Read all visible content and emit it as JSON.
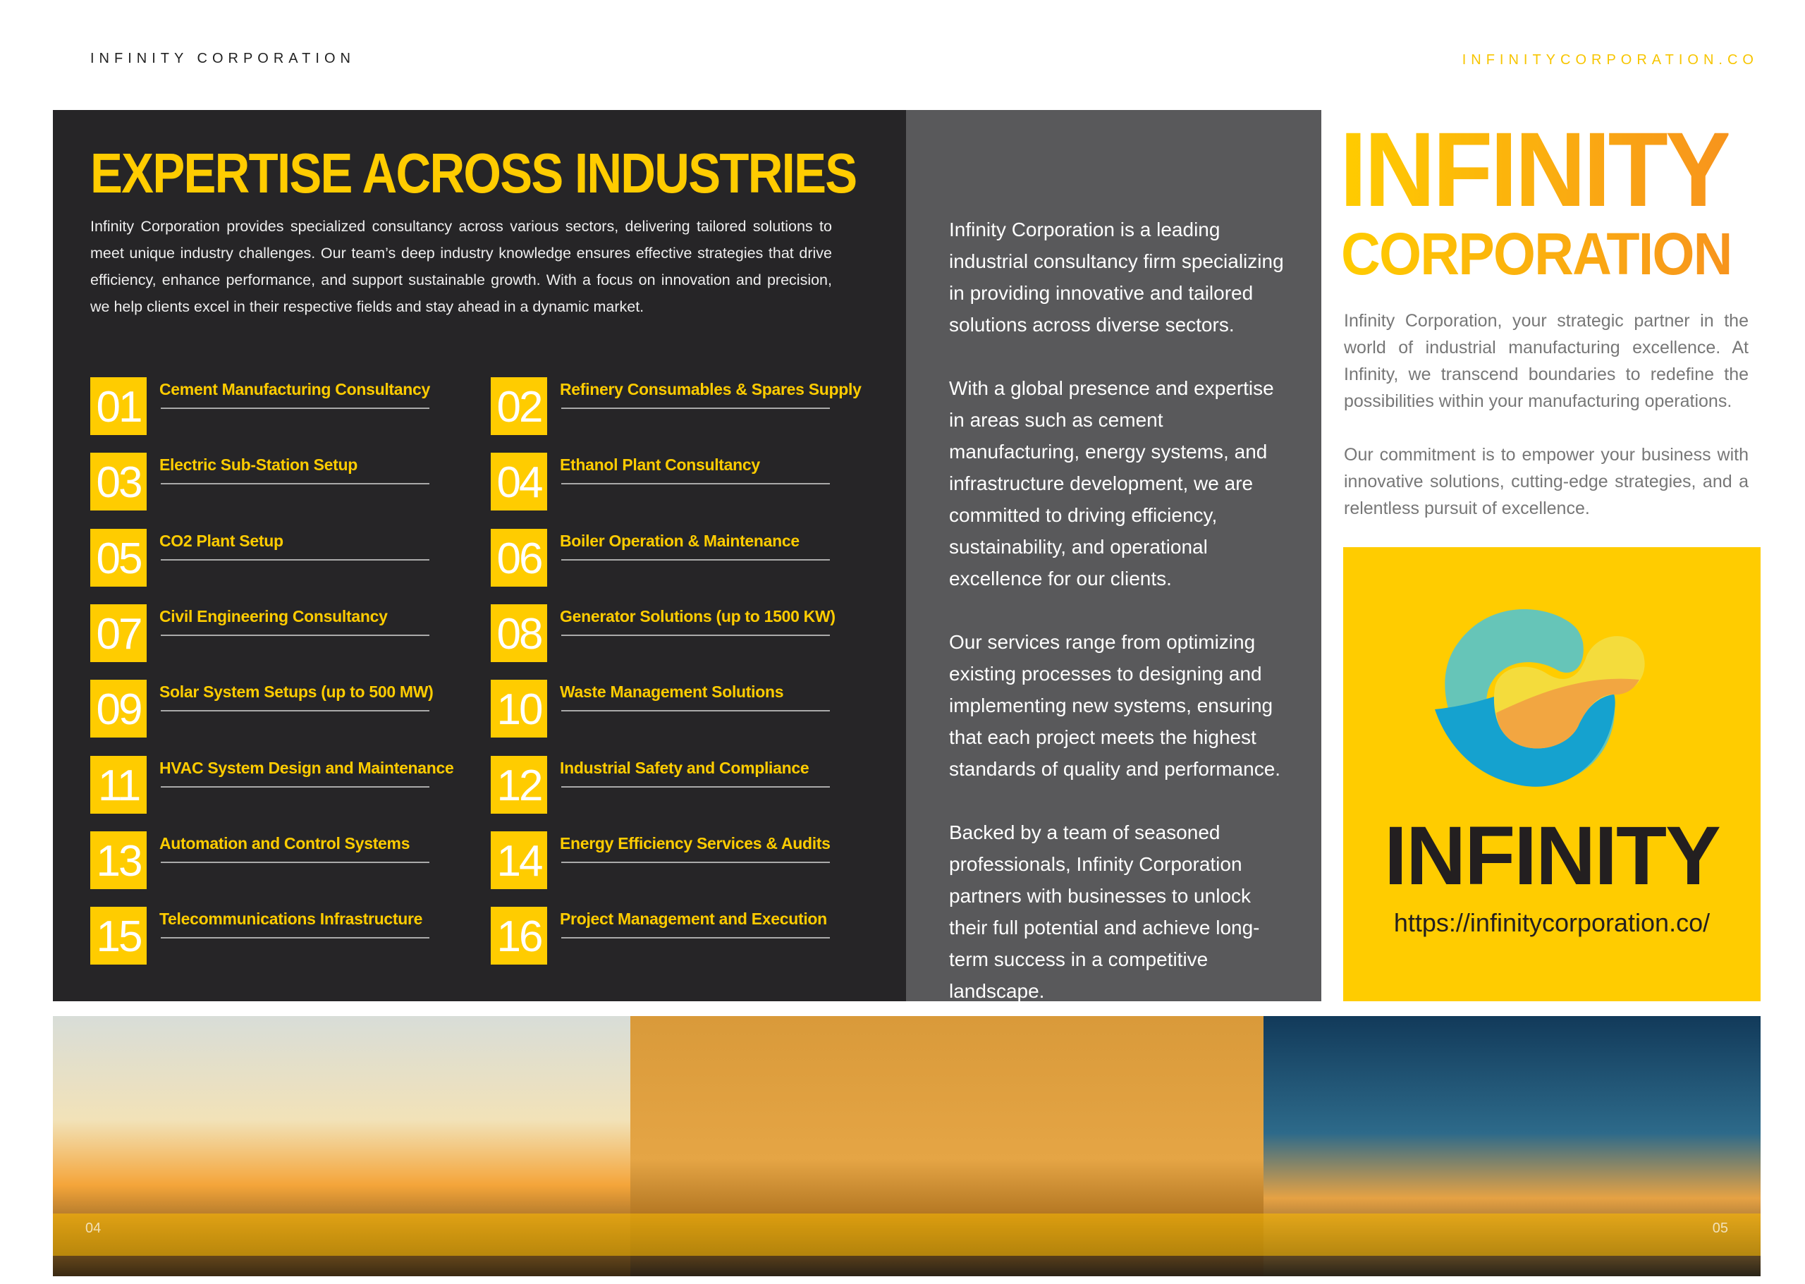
{
  "header": {
    "left": "INFINITY CORPORATION",
    "right": "INFINITYCORPORATION.CO"
  },
  "expertise": {
    "title": "EXPERTISE ACROSS INDUSTRIES",
    "intro": "Infinity Corporation provides specialized consultancy across various sectors, delivering tailored solutions to meet unique industry challenges. Our team’s deep industry knowledge ensures effective strategies that drive efficiency, enhance performance, and support sustainable growth. With a focus on innovation and precision, we help clients excel in their respective fields and stay ahead in a dynamic market.",
    "items": [
      {
        "num": "01",
        "label": "Cement Manufacturing Consultancy"
      },
      {
        "num": "02",
        "label": "Refinery Consumables & Spares Supply"
      },
      {
        "num": "03",
        "label": "Electric Sub-Station Setup"
      },
      {
        "num": "04",
        "label": "Ethanol Plant Consultancy"
      },
      {
        "num": "05",
        "label": "CO2 Plant Setup"
      },
      {
        "num": "06",
        "label": "Boiler Operation & Maintenance"
      },
      {
        "num": "07",
        "label": "Civil Engineering Consultancy"
      },
      {
        "num": "08",
        "label": "Generator Solutions (up to 1500 KW)"
      },
      {
        "num": "09",
        "label": "Solar System Setups (up to 500 MW)"
      },
      {
        "num": "10",
        "label": "Waste Management Solutions"
      },
      {
        "num": "11",
        "label": "HVAC System Design and Maintenance"
      },
      {
        "num": "12",
        "label": "Industrial Safety and Compliance"
      },
      {
        "num": "13",
        "label": "Automation and Control Systems"
      },
      {
        "num": "14",
        "label": "Energy Efficiency Services & Audits"
      },
      {
        "num": "15",
        "label": "Telecommunications Infrastructure"
      },
      {
        "num": "16",
        "label": "Project Management and Execution"
      }
    ]
  },
  "about": {
    "paragraphs": [
      "Infinity Corporation is a leading industrial consultancy firm specializing in providing innovative and tailored solutions across diverse sectors.",
      "With a global presence and expertise in areas such as cement manufacturing, energy systems, and infrastructure development, we are committed to driving efficiency, sustainability, and operational excellence for our clients.",
      "Our services range from optimizing existing processes to designing and implementing new systems, ensuring that each project meets the highest standards of quality and performance.",
      "Backed by a team of seasoned professionals, Infinity Corporation partners with businesses to unlock their full potential and achieve long-term success in a competitive landscape."
    ]
  },
  "brand": {
    "title_line1": "INFINITY",
    "title_line2": "CORPORATION",
    "paragraphs": [
      "Infinity Corporation, your strategic partner in the world of industrial manufacturing excellence. At Infinity, we transcend boundaries to redefine the possibilities within your manufacturing operations.",
      "Our commitment is to empower your business with innovative solutions, cutting-edge strategies, and a relentless pursuit of excellence."
    ],
    "logo_word": "INFINITY",
    "logo_url": "https://infinitycorporation.co/"
  },
  "pages": {
    "left": "04",
    "right": "05"
  },
  "colors": {
    "accent": "#ffcc00",
    "dark": "#262527",
    "gray": "#59595b",
    "orange": "#f7941d"
  }
}
